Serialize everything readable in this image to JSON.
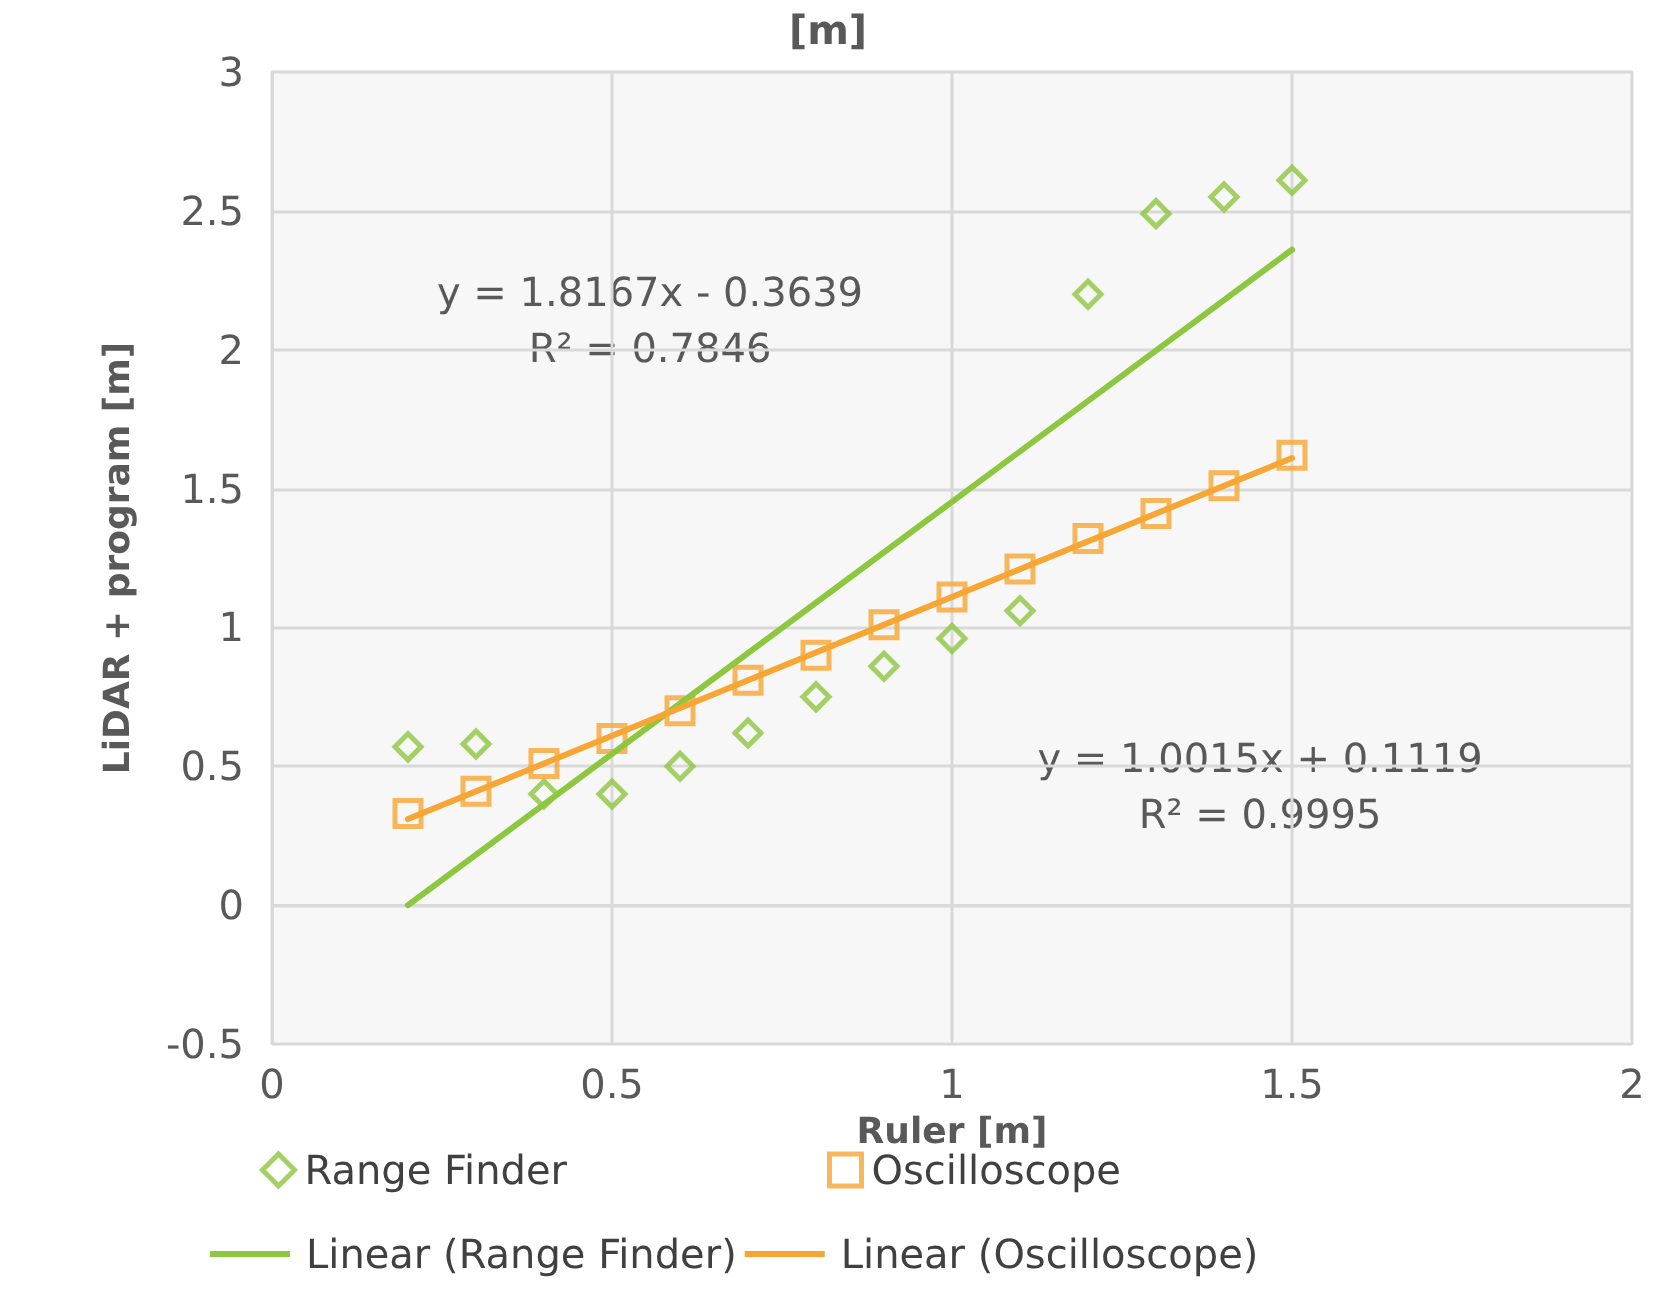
{
  "chart_data": {
    "type": "scatter",
    "title": "[m]",
    "xlabel": "Ruler [m]",
    "ylabel": "LiDAR + program [m]",
    "series": [
      {
        "name": "Range Finder",
        "type": "scatter",
        "marker": "diamond",
        "color": "#8dc63f",
        "x": [
          0.2,
          0.3,
          0.4,
          0.5,
          0.6,
          0.7,
          0.8,
          0.9,
          1.0,
          1.1,
          1.2,
          1.3,
          1.4,
          1.5
        ],
        "values": [
          0.57,
          0.58,
          0.4,
          0.4,
          0.5,
          0.62,
          0.75,
          0.86,
          0.96,
          1.06,
          2.2,
          2.49,
          2.55,
          2.61
        ]
      },
      {
        "name": "Oscilloscope",
        "type": "scatter",
        "marker": "square",
        "color": "#f7a533",
        "x": [
          0.2,
          0.3,
          0.4,
          0.5,
          0.6,
          0.7,
          0.8,
          0.9,
          1.0,
          1.1,
          1.2,
          1.3,
          1.4,
          1.5
        ],
        "values": [
          0.33,
          0.41,
          0.51,
          0.6,
          0.7,
          0.81,
          0.9,
          1.01,
          1.11,
          1.21,
          1.32,
          1.41,
          1.51,
          1.62
        ]
      },
      {
        "name": "Linear (Range Finder)",
        "type": "line",
        "marker": "none",
        "color": "#8dc63f",
        "x": [
          0.2,
          1.5
        ],
        "values": [
          0.0,
          2.36
        ]
      },
      {
        "name": "Linear (Oscilloscope)",
        "type": "line",
        "marker": "none",
        "color": "#f7a533",
        "x": [
          0.2,
          1.5
        ],
        "values": [
          0.31,
          1.61
        ]
      }
    ],
    "annotations": [
      "y = 1.8167x - 0.3639\nR² = 0.7846",
      "y = 1.0015x + 0.1119\nR² = 0.9995"
    ],
    "xlim": [
      0,
      2
    ],
    "xticks": [
      0,
      0.5,
      1,
      1.5,
      2
    ],
    "ylim": [
      -0.5,
      3
    ],
    "yticks": [
      -0.5,
      0,
      0.5,
      1,
      1.5,
      2,
      2.5,
      3
    ],
    "grid": true,
    "legend": "bottom"
  }
}
